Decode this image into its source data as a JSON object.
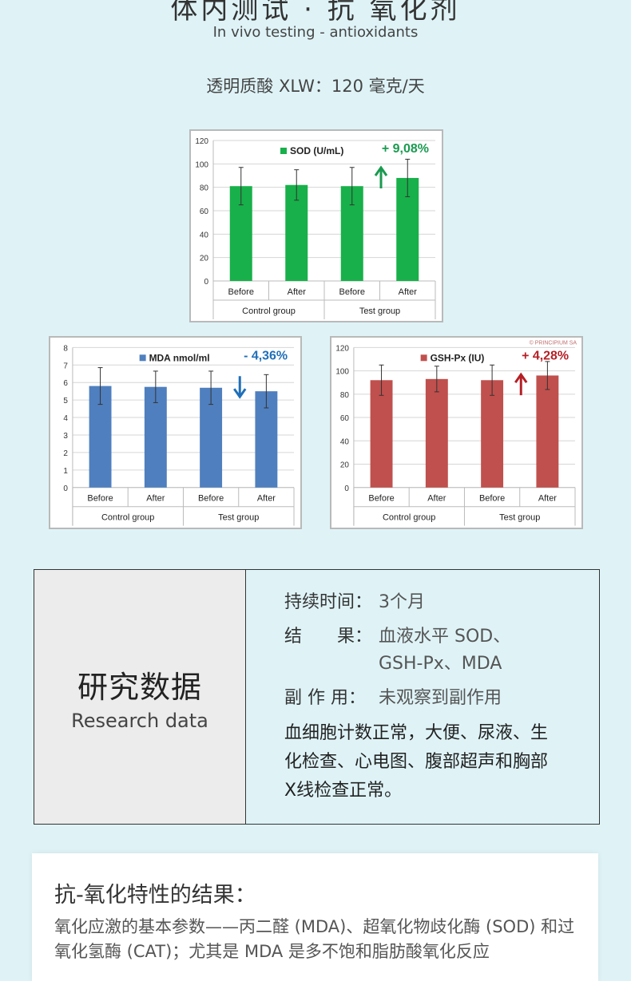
{
  "header": {
    "title": "体内测试 · 抗 氧化剂",
    "subtitle": "In vivo testing - antioxidants",
    "dose": "透明质酸 XLW：120 毫克/天"
  },
  "colors": {
    "sod": "#18b04a",
    "mda": "#4f7fbe",
    "gsh": "#c0504d",
    "up_arrow_sod": "#1a9a50",
    "down_arrow_mda": "#1f6fb8",
    "up_arrow_gsh": "#b51f25",
    "pct_sod": "#1a9a50",
    "pct_mda": "#1f6fb8",
    "pct_gsh": "#b51f25"
  },
  "chart_data": [
    {
      "type": "bar",
      "categories": [
        "Before",
        "After",
        "Before",
        "After"
      ],
      "groups": [
        "Control group",
        "Test group"
      ],
      "series": [
        {
          "name": "SOD (U/mL)",
          "values": [
            81,
            82,
            81,
            88
          ],
          "error": [
            16,
            13,
            16,
            16
          ]
        }
      ],
      "ylim": [
        0,
        120
      ],
      "yticks": [
        0,
        20,
        40,
        60,
        80,
        100,
        120
      ],
      "change": "+ 9,08%",
      "arrow": "up",
      "watermark": "",
      "grid": true,
      "legend": "top-right"
    },
    {
      "type": "bar",
      "categories": [
        "Before",
        "After",
        "Before",
        "After"
      ],
      "groups": [
        "Control group",
        "Test group"
      ],
      "series": [
        {
          "name": "MDA nmol/ml",
          "values": [
            5.8,
            5.75,
            5.7,
            5.5
          ],
          "error": [
            1.05,
            0.9,
            0.95,
            0.95
          ]
        }
      ],
      "ylim": [
        0,
        8
      ],
      "yticks": [
        0,
        1,
        2,
        3,
        4,
        5,
        6,
        7,
        8
      ],
      "change": "- 4,36%",
      "arrow": "down",
      "watermark": "",
      "grid": true,
      "legend": "top-right"
    },
    {
      "type": "bar",
      "categories": [
        "Before",
        "After",
        "Before",
        "After"
      ],
      "groups": [
        "Control group",
        "Test group"
      ],
      "series": [
        {
          "name": "GSH-Px (IU)",
          "values": [
            92,
            93,
            92,
            96
          ],
          "error": [
            13,
            11,
            13,
            12
          ]
        }
      ],
      "ylim": [
        0,
        120
      ],
      "yticks": [
        0,
        20,
        40,
        60,
        80,
        100,
        120
      ],
      "change": "+ 4,28%",
      "arrow": "up",
      "watermark": "© PRINCIPIUM SA",
      "grid": true,
      "legend": "top-right"
    }
  ],
  "research": {
    "title": "研究数据",
    "subtitle": "Research data",
    "duration_key": "持续时间：",
    "duration_val": "3个月",
    "result_key": "结　　果：",
    "result_val_1": "血液水平 SOD、",
    "result_val_2": "GSH-Px、MDA",
    "side_key": "副 作 用：",
    "side_val": "未观察到副作用",
    "notes": "血细胞计数正常，大便、尿液、生化检查、心电图、腹部超声和胸部X线检查正常。"
  },
  "results": {
    "heading": "抗-氧化特性的结果：",
    "body": "氧化应激的基本参数——丙二醛 (MDA)、超氧化物歧化酶 (SOD) 和过氧化氢酶 (CAT)；尤其是 MDA 是多不饱和脂肪酸氧化反应"
  }
}
